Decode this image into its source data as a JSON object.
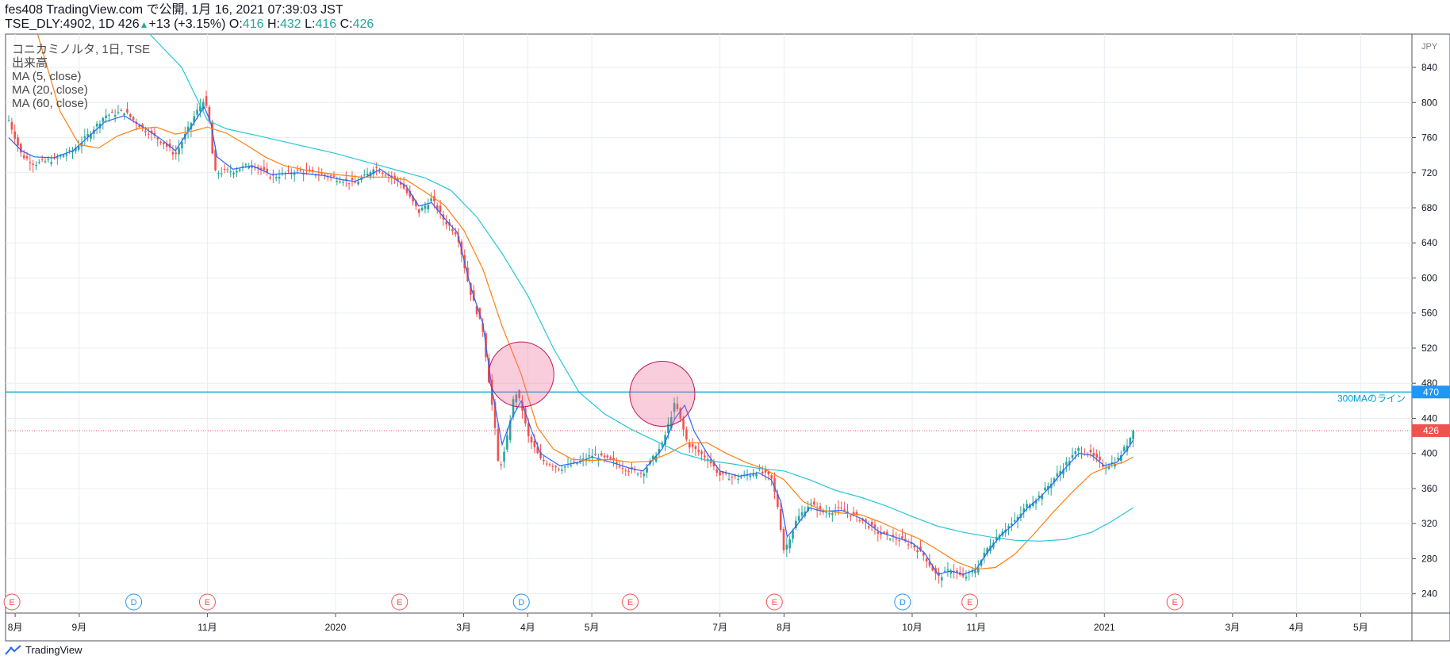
{
  "header": {
    "line1": "fes408 TradingView.com で公開, 1月 16, 2021 07:39:03 JST",
    "symbol": "TSE_DLY:4902, 1D",
    "price": "426",
    "up_arrow": "▲",
    "change": "+13 (+3.15%)",
    "o_label": "O:",
    "o_val": "416",
    "h_label": "H:",
    "h_val": "432",
    "l_label": "L:",
    "l_val": "416",
    "c_label": "C:",
    "c_val": "426"
  },
  "legend": {
    "series_title": "コニカミノルタ, 1日, TSE",
    "volume": "出来高",
    "ma5": "MA (5, close)",
    "ma20": "MA (20, close)",
    "ma60": "MA (60, close)"
  },
  "footer": {
    "brand": "TradingView"
  },
  "chart_data": {
    "type": "candlestick",
    "currency": "JPY",
    "y_ticks": [
      240,
      280,
      320,
      360,
      400,
      440,
      480,
      520,
      560,
      600,
      640,
      680,
      720,
      760,
      800,
      840
    ],
    "ylim": [
      218,
      878
    ],
    "x_tick_labels": [
      "8月",
      "9月",
      "11月",
      "2020",
      "3月",
      "4月",
      "5月",
      "7月",
      "8月",
      "10月",
      "11月",
      "2021",
      "3月",
      "4月",
      "5月"
    ],
    "x_tick_months": [
      0,
      1,
      3,
      5,
      7,
      8,
      9,
      11,
      12,
      14,
      15,
      17,
      19,
      20,
      21
    ],
    "xlim_months": [
      -0.15,
      21.8
    ],
    "last_price": 426,
    "hline": {
      "value": 470,
      "label": "300MAのライン"
    },
    "circles": [
      {
        "center_month": 7.9,
        "center_value": 490
      },
      {
        "center_month": 10.1,
        "center_value": 468
      }
    ],
    "events": [
      {
        "type": "E",
        "month": -0.05
      },
      {
        "type": "D",
        "month": 1.85
      },
      {
        "type": "E",
        "month": 3.0
      },
      {
        "type": "E",
        "month": 6.0
      },
      {
        "type": "D",
        "month": 7.9
      },
      {
        "type": "E",
        "month": 9.6
      },
      {
        "type": "E",
        "month": 11.85
      },
      {
        "type": "D",
        "month": 13.85
      },
      {
        "type": "E",
        "month": 14.9
      },
      {
        "type": "E",
        "month": 18.1
      }
    ],
    "close_path": [
      [
        -0.1,
        780
      ],
      [
        0.1,
        740
      ],
      [
        0.3,
        730
      ],
      [
        0.6,
        735
      ],
      [
        0.9,
        745
      ],
      [
        1.1,
        760
      ],
      [
        1.4,
        785
      ],
      [
        1.7,
        790
      ],
      [
        2.0,
        770
      ],
      [
        2.3,
        755
      ],
      [
        2.5,
        740
      ],
      [
        2.8,
        785
      ],
      [
        2.95,
        805
      ],
      [
        3.05,
        770
      ],
      [
        3.1,
        720
      ],
      [
        3.4,
        722
      ],
      [
        3.7,
        730
      ],
      [
        4.0,
        715
      ],
      [
        4.4,
        722
      ],
      [
        4.8,
        718
      ],
      [
        5.1,
        712
      ],
      [
        5.3,
        708
      ],
      [
        5.5,
        718
      ],
      [
        5.6,
        727
      ],
      [
        5.8,
        718
      ],
      [
        6.0,
        710
      ],
      [
        6.3,
        675
      ],
      [
        6.5,
        690
      ],
      [
        6.7,
        665
      ],
      [
        6.9,
        650
      ],
      [
        7.1,
        585
      ],
      [
        7.3,
        540
      ],
      [
        7.4,
        480
      ],
      [
        7.5,
        420
      ],
      [
        7.55,
        380
      ],
      [
        7.65,
        405
      ],
      [
        7.8,
        472
      ],
      [
        7.9,
        455
      ],
      [
        8.0,
        420
      ],
      [
        8.2,
        393
      ],
      [
        8.5,
        383
      ],
      [
        8.8,
        390
      ],
      [
        9.0,
        398
      ],
      [
        9.3,
        392
      ],
      [
        9.6,
        380
      ],
      [
        9.8,
        378
      ],
      [
        10.1,
        410
      ],
      [
        10.3,
        458
      ],
      [
        10.5,
        410
      ],
      [
        10.8,
        395
      ],
      [
        11.0,
        375
      ],
      [
        11.3,
        372
      ],
      [
        11.6,
        380
      ],
      [
        11.8,
        372
      ],
      [
        11.9,
        340
      ],
      [
        12.0,
        288
      ],
      [
        12.2,
        325
      ],
      [
        12.4,
        343
      ],
      [
        12.6,
        333
      ],
      [
        12.9,
        336
      ],
      [
        13.2,
        325
      ],
      [
        13.5,
        308
      ],
      [
        13.8,
        302
      ],
      [
        14.0,
        296
      ],
      [
        14.2,
        282
      ],
      [
        14.4,
        258
      ],
      [
        14.6,
        268
      ],
      [
        14.8,
        258
      ],
      [
        15.0,
        268
      ],
      [
        15.2,
        295
      ],
      [
        15.4,
        312
      ],
      [
        15.6,
        322
      ],
      [
        15.8,
        342
      ],
      [
        16.0,
        352
      ],
      [
        16.2,
        370
      ],
      [
        16.4,
        388
      ],
      [
        16.6,
        405
      ],
      [
        16.8,
        398
      ],
      [
        17.0,
        385
      ],
      [
        17.2,
        392
      ],
      [
        17.35,
        410
      ],
      [
        17.45,
        426
      ]
    ],
    "series": [
      {
        "name": "MA (5, close)",
        "color": "#2962ff",
        "values": [
          [
            -0.1,
            760
          ],
          [
            0.1,
            745
          ],
          [
            0.3,
            738
          ],
          [
            0.6,
            737
          ],
          [
            0.9,
            745
          ],
          [
            1.1,
            758
          ],
          [
            1.4,
            778
          ],
          [
            1.7,
            785
          ],
          [
            2.0,
            772
          ],
          [
            2.3,
            757
          ],
          [
            2.5,
            745
          ],
          [
            2.8,
            778
          ],
          [
            2.95,
            795
          ],
          [
            3.05,
            778
          ],
          [
            3.15,
            738
          ],
          [
            3.4,
            724
          ],
          [
            3.7,
            728
          ],
          [
            4.0,
            718
          ],
          [
            4.4,
            720
          ],
          [
            4.8,
            717
          ],
          [
            5.1,
            712
          ],
          [
            5.3,
            710
          ],
          [
            5.5,
            716
          ],
          [
            5.7,
            724
          ],
          [
            5.9,
            714
          ],
          [
            6.1,
            705
          ],
          [
            6.3,
            682
          ],
          [
            6.5,
            686
          ],
          [
            6.7,
            668
          ],
          [
            6.9,
            652
          ],
          [
            7.1,
            592
          ],
          [
            7.3,
            548
          ],
          [
            7.45,
            470
          ],
          [
            7.6,
            410
          ],
          [
            7.75,
            440
          ],
          [
            7.9,
            460
          ],
          [
            8.05,
            428
          ],
          [
            8.2,
            400
          ],
          [
            8.5,
            386
          ],
          [
            8.8,
            390
          ],
          [
            9.0,
            396
          ],
          [
            9.3,
            390
          ],
          [
            9.6,
            383
          ],
          [
            9.8,
            380
          ],
          [
            10.1,
            405
          ],
          [
            10.3,
            440
          ],
          [
            10.45,
            455
          ],
          [
            10.6,
            425
          ],
          [
            10.8,
            400
          ],
          [
            11.0,
            380
          ],
          [
            11.3,
            374
          ],
          [
            11.6,
            378
          ],
          [
            11.8,
            370
          ],
          [
            11.95,
            345
          ],
          [
            12.05,
            305
          ],
          [
            12.2,
            318
          ],
          [
            12.4,
            338
          ],
          [
            12.6,
            334
          ],
          [
            12.9,
            335
          ],
          [
            13.2,
            326
          ],
          [
            13.5,
            310
          ],
          [
            13.8,
            303
          ],
          [
            14.0,
            298
          ],
          [
            14.2,
            286
          ],
          [
            14.4,
            262
          ],
          [
            14.6,
            266
          ],
          [
            14.8,
            262
          ],
          [
            15.0,
            268
          ],
          [
            15.2,
            290
          ],
          [
            15.4,
            308
          ],
          [
            15.6,
            320
          ],
          [
            15.8,
            338
          ],
          [
            16.0,
            350
          ],
          [
            16.2,
            366
          ],
          [
            16.4,
            384
          ],
          [
            16.6,
            400
          ],
          [
            16.8,
            398
          ],
          [
            17.0,
            386
          ],
          [
            17.2,
            390
          ],
          [
            17.35,
            404
          ],
          [
            17.45,
            415
          ]
        ]
      },
      {
        "name": "MA (20, close)",
        "color": "#ff7f0e",
        "values": [
          [
            0.35,
            878
          ],
          [
            0.7,
            790
          ],
          [
            1.0,
            752
          ],
          [
            1.3,
            748
          ],
          [
            1.6,
            762
          ],
          [
            1.9,
            770
          ],
          [
            2.2,
            772
          ],
          [
            2.5,
            764
          ],
          [
            2.8,
            768
          ],
          [
            3.0,
            772
          ],
          [
            3.3,
            765
          ],
          [
            3.6,
            752
          ],
          [
            3.9,
            738
          ],
          [
            4.2,
            728
          ],
          [
            4.6,
            722
          ],
          [
            5.0,
            718
          ],
          [
            5.4,
            715
          ],
          [
            5.8,
            715
          ],
          [
            6.1,
            712
          ],
          [
            6.4,
            698
          ],
          [
            6.7,
            683
          ],
          [
            7.0,
            655
          ],
          [
            7.3,
            610
          ],
          [
            7.6,
            545
          ],
          [
            7.9,
            490
          ],
          [
            8.15,
            430
          ],
          [
            8.4,
            405
          ],
          [
            8.7,
            393
          ],
          [
            9.0,
            392
          ],
          [
            9.3,
            393
          ],
          [
            9.6,
            390
          ],
          [
            9.9,
            391
          ],
          [
            10.2,
            400
          ],
          [
            10.5,
            412
          ],
          [
            10.8,
            412
          ],
          [
            11.1,
            400
          ],
          [
            11.4,
            390
          ],
          [
            11.7,
            382
          ],
          [
            12.0,
            370
          ],
          [
            12.3,
            345
          ],
          [
            12.6,
            335
          ],
          [
            12.9,
            332
          ],
          [
            13.2,
            330
          ],
          [
            13.5,
            322
          ],
          [
            13.8,
            312
          ],
          [
            14.1,
            303
          ],
          [
            14.4,
            290
          ],
          [
            14.7,
            276
          ],
          [
            15.0,
            268
          ],
          [
            15.3,
            270
          ],
          [
            15.6,
            285
          ],
          [
            15.9,
            308
          ],
          [
            16.2,
            333
          ],
          [
            16.5,
            356
          ],
          [
            16.8,
            377
          ],
          [
            17.1,
            386
          ],
          [
            17.3,
            390
          ],
          [
            17.45,
            396
          ]
        ]
      },
      {
        "name": "MA (60, close)",
        "color": "#26c6da",
        "values": [
          [
            2.1,
            878
          ],
          [
            2.6,
            840
          ],
          [
            3.0,
            780
          ],
          [
            3.3,
            770
          ],
          [
            3.8,
            762
          ],
          [
            4.4,
            752
          ],
          [
            5.0,
            742
          ],
          [
            5.6,
            730
          ],
          [
            6.0,
            722
          ],
          [
            6.4,
            714
          ],
          [
            6.8,
            700
          ],
          [
            7.2,
            670
          ],
          [
            7.6,
            628
          ],
          [
            8.0,
            580
          ],
          [
            8.4,
            520
          ],
          [
            8.8,
            470
          ],
          [
            9.2,
            445
          ],
          [
            9.6,
            428
          ],
          [
            10.0,
            414
          ],
          [
            10.4,
            400
          ],
          [
            10.8,
            392
          ],
          [
            11.2,
            388
          ],
          [
            11.6,
            383
          ],
          [
            12.0,
            380
          ],
          [
            12.4,
            370
          ],
          [
            12.8,
            358
          ],
          [
            13.2,
            350
          ],
          [
            13.6,
            340
          ],
          [
            14.0,
            328
          ],
          [
            14.4,
            317
          ],
          [
            14.8,
            310
          ],
          [
            15.2,
            305
          ],
          [
            15.6,
            301
          ],
          [
            16.0,
            300
          ],
          [
            16.4,
            302
          ],
          [
            16.8,
            310
          ],
          [
            17.1,
            322
          ],
          [
            17.45,
            338
          ]
        ]
      }
    ]
  },
  "colors": {
    "up": "#26a69a",
    "down": "#ef5350",
    "grid": "#e8edf2",
    "hline": "#00a0d2",
    "circle_fill": "rgba(240,98,146,0.32)",
    "circle_stroke": "#c2185b",
    "event_e": "#ef5350",
    "event_d": "#2196f3",
    "price_tag_blue": "#2196f3",
    "price_tag_red": "#ef5350"
  }
}
